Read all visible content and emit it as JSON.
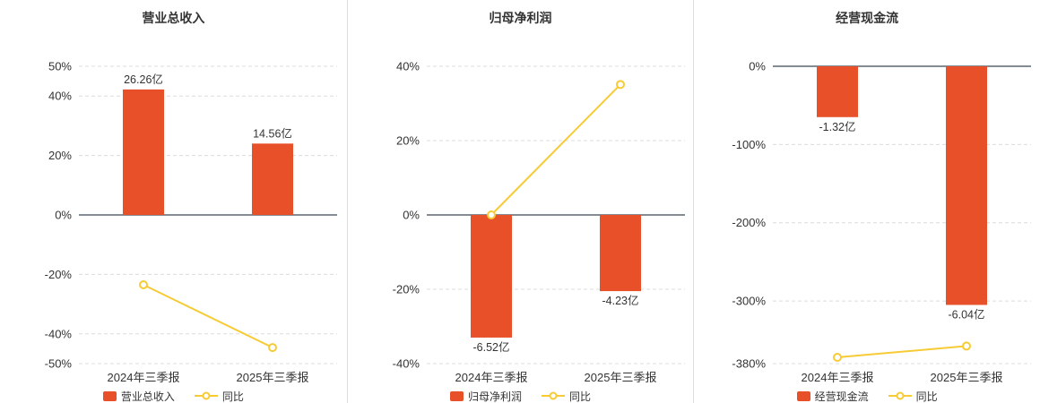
{
  "colors": {
    "bar": "#e8502a",
    "line": "#f7cb35",
    "grid": "#dcdcdc",
    "zero_line": "#5a6570",
    "axis_label": "#333333",
    "value_label": "#333333",
    "title": "#333333",
    "divider": "#dddddd",
    "background": "#ffffff"
  },
  "chart_data": [
    {
      "type": "bar",
      "title": "营业总收入",
      "categories": [
        "2024年三季报",
        "2025年三季报"
      ],
      "bar_series": {
        "name": "营业总收入",
        "labels": [
          "26.26亿",
          "14.56亿"
        ],
        "axis_values": [
          42.2,
          24.0
        ]
      },
      "line_series": {
        "name": "同比",
        "values": [
          -23.5,
          -44.6
        ]
      },
      "ylim": [
        -50,
        50
      ],
      "yticks": [
        "50%",
        "40%",
        "20%",
        "0%",
        "-20%",
        "-40%",
        "-50%"
      ],
      "ytick_values": [
        50,
        40,
        20,
        0,
        -20,
        -40,
        -50
      ],
      "grid": "dashed-horizontal",
      "legend_position": "bottom"
    },
    {
      "type": "bar",
      "title": "归母净利润",
      "categories": [
        "2024年三季报",
        "2025年三季报"
      ],
      "bar_series": {
        "name": "归母净利润",
        "labels": [
          "-6.52亿",
          "-4.23亿"
        ],
        "axis_values": [
          -33.0,
          -20.5
        ]
      },
      "line_series": {
        "name": "同比",
        "values": [
          0,
          35.1
        ]
      },
      "ylim": [
        -40,
        40
      ],
      "yticks": [
        "40%",
        "20%",
        "0%",
        "-20%",
        "-40%"
      ],
      "ytick_values": [
        40,
        20,
        0,
        -20,
        -40
      ],
      "grid": "dashed-horizontal",
      "legend_position": "bottom"
    },
    {
      "type": "bar",
      "title": "经营现金流",
      "categories": [
        "2024年三季报",
        "2025年三季报"
      ],
      "bar_series": {
        "name": "经营现金流",
        "labels": [
          "-1.32亿",
          "-6.04亿"
        ],
        "axis_values": [
          -65,
          -305
        ]
      },
      "line_series": {
        "name": "同比",
        "values": [
          -372,
          -357.6
        ]
      },
      "ylim": [
        -380,
        0
      ],
      "yticks": [
        "0%",
        "-100%",
        "-200%",
        "-300%",
        "-380%"
      ],
      "ytick_values": [
        0,
        -100,
        -200,
        -300,
        -380
      ],
      "grid": "dashed-horizontal",
      "legend_position": "bottom"
    }
  ]
}
